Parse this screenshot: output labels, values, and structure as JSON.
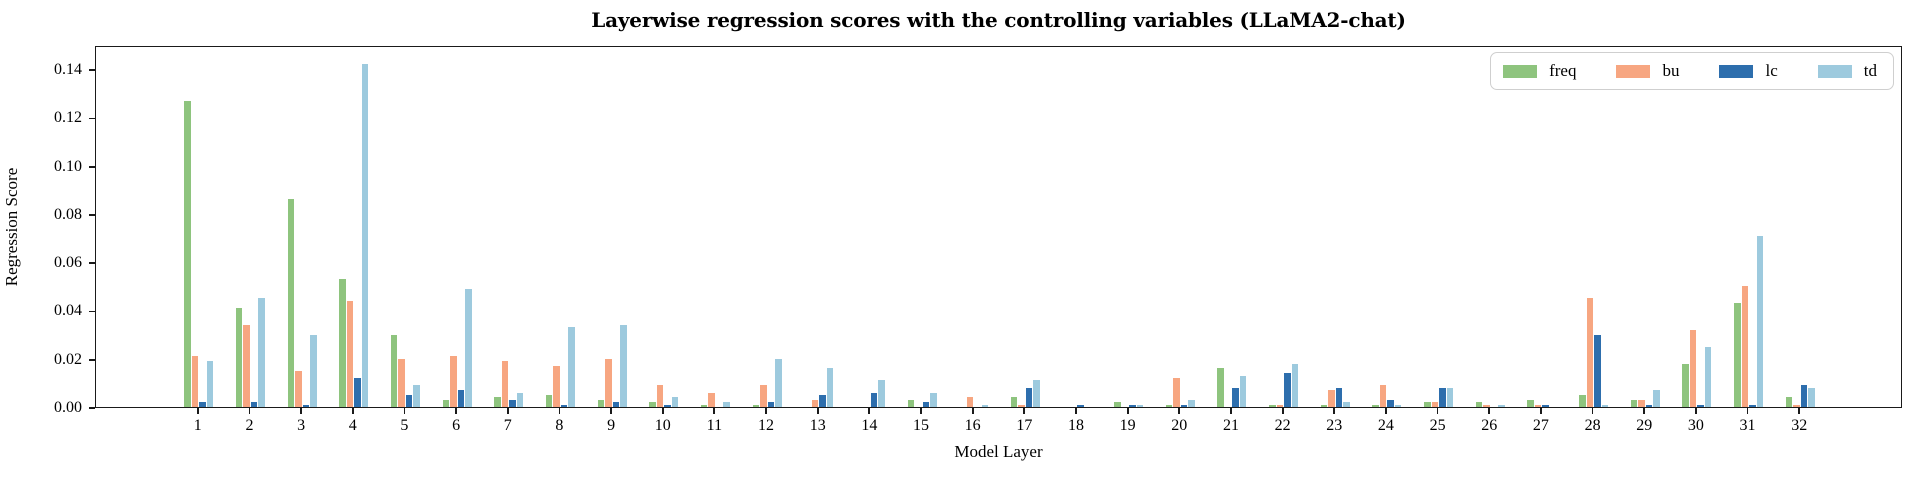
{
  "chart_data": {
    "type": "bar",
    "title": "Layerwise regression scores with the controlling variables (LLaMA2-chat)",
    "xlabel": "Model Layer",
    "ylabel": "Regression Score",
    "categories": [
      "1",
      "2",
      "3",
      "4",
      "5",
      "6",
      "7",
      "8",
      "9",
      "10",
      "11",
      "12",
      "13",
      "14",
      "15",
      "16",
      "17",
      "18",
      "19",
      "20",
      "21",
      "22",
      "23",
      "24",
      "25",
      "26",
      "27",
      "28",
      "29",
      "30",
      "31",
      "32"
    ],
    "series": [
      {
        "name": "freq",
        "color": "#8ec47e",
        "values": [
          0.127,
          0.041,
          0.086,
          0.053,
          0.03,
          0.003,
          0.004,
          0.005,
          0.003,
          0.002,
          0.001,
          0.001,
          0.0,
          0.0,
          0.003,
          0.0,
          0.004,
          0.0,
          0.002,
          0.001,
          0.016,
          0.001,
          0.001,
          0.001,
          0.002,
          0.002,
          0.003,
          0.005,
          0.003,
          0.018,
          0.043,
          0.004
        ]
      },
      {
        "name": "bu",
        "color": "#f7a681",
        "values": [
          0.021,
          0.034,
          0.015,
          0.044,
          0.02,
          0.021,
          0.019,
          0.017,
          0.02,
          0.009,
          0.006,
          0.009,
          0.003,
          0.0,
          0.0,
          0.004,
          0.001,
          0.0,
          0.0,
          0.012,
          0.0,
          0.001,
          0.007,
          0.009,
          0.002,
          0.001,
          0.001,
          0.045,
          0.003,
          0.032,
          0.05,
          0.001
        ]
      },
      {
        "name": "lc",
        "color": "#2d6ead",
        "values": [
          0.002,
          0.002,
          0.001,
          0.012,
          0.005,
          0.007,
          0.003,
          0.001,
          0.002,
          0.001,
          0.0,
          0.002,
          0.005,
          0.006,
          0.002,
          0.0,
          0.008,
          0.001,
          0.001,
          0.001,
          0.008,
          0.014,
          0.008,
          0.003,
          0.008,
          0.0,
          0.001,
          0.03,
          0.001,
          0.001,
          0.001,
          0.009
        ]
      },
      {
        "name": "td",
        "color": "#9dcade",
        "values": [
          0.019,
          0.045,
          0.03,
          0.142,
          0.009,
          0.049,
          0.006,
          0.033,
          0.034,
          0.004,
          0.002,
          0.02,
          0.016,
          0.011,
          0.006,
          0.001,
          0.011,
          0.0,
          0.001,
          0.003,
          0.013,
          0.018,
          0.002,
          0.001,
          0.008,
          0.001,
          0.0,
          0.001,
          0.007,
          0.025,
          0.071,
          0.008
        ]
      }
    ],
    "ylim": [
      0,
      0.15
    ],
    "ytick_step": 0.02,
    "yticks": [
      "0.00",
      "0.02",
      "0.04",
      "0.06",
      "0.08",
      "0.10",
      "0.12",
      "0.14"
    ],
    "grid": false,
    "legend_position": "upper right",
    "legend_labels": [
      "freq",
      "bu",
      "lc",
      "td"
    ]
  }
}
